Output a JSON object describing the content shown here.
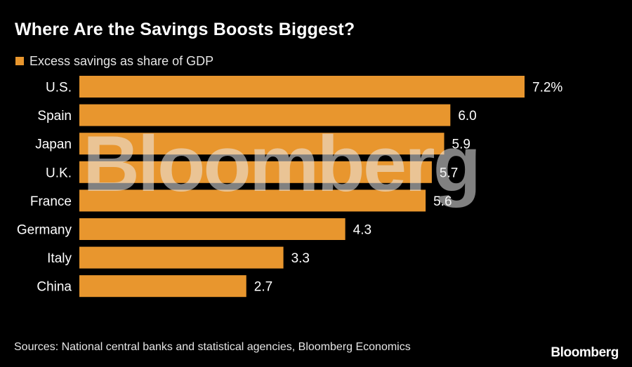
{
  "chart_data": {
    "type": "bar",
    "orientation": "horizontal",
    "title": "Where Are the Savings Boosts Biggest?",
    "legend": [
      "Excess savings as share of GDP"
    ],
    "categories": [
      "U.S.",
      "Spain",
      "Japan",
      "U.K.",
      "France",
      "Germany",
      "Italy",
      "China"
    ],
    "values": [
      7.2,
      6.0,
      5.9,
      5.7,
      5.6,
      4.3,
      3.3,
      2.7
    ],
    "value_labels": [
      "7.2%",
      "6.0",
      "5.9",
      "5.7",
      "5.6",
      "4.3",
      "3.3",
      "2.7"
    ],
    "xlim": [
      0,
      7.2
    ],
    "xlabel": "",
    "ylabel": "",
    "grid": false,
    "bar_color": "#E8962E",
    "background_color": "#000000"
  },
  "watermark": "Bloomberg",
  "footer": {
    "sources": "Sources: National central banks and statistical agencies, Bloomberg Economics",
    "brand": "Bloomberg"
  }
}
